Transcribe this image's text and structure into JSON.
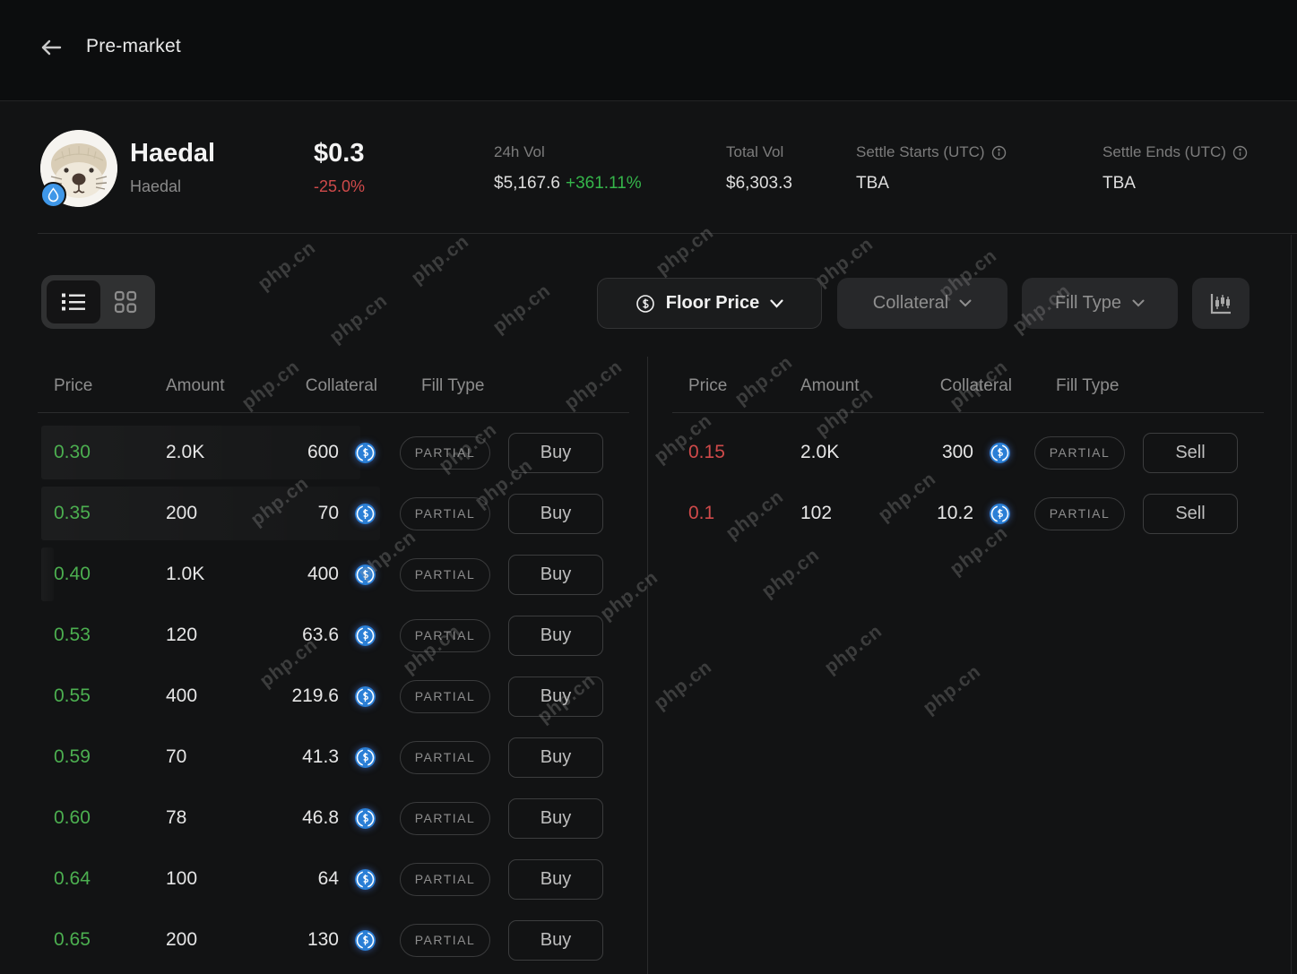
{
  "header": {
    "back": "back",
    "title": "Pre-market"
  },
  "token": {
    "name": "Haedal",
    "subtitle": "Haedal",
    "price": "$0.3",
    "change": "-25.0%",
    "chain_badge": "sui-icon",
    "stats": [
      {
        "label": "24h Vol",
        "value": "$5,167.6",
        "extra": "+361.11%",
        "info": false
      },
      {
        "label": "Total Vol",
        "value": "$6,303.3",
        "info": false
      },
      {
        "label": "Settle Starts (UTC)",
        "value": "TBA",
        "info": true
      },
      {
        "label": "Settle Ends (UTC)",
        "value": "TBA",
        "info": true
      }
    ]
  },
  "filters": {
    "floor_price_label": "Floor Price",
    "collateral_label": "Collateral",
    "fill_type_label": "Fill Type"
  },
  "buy_table": {
    "headers": {
      "price": "Price",
      "amount": "Amount",
      "collateral": "Collateral",
      "fill_type": "Fill Type"
    },
    "rows": [
      {
        "price": "0.30",
        "amount": "2.0K",
        "collateral": "600",
        "fill": "PARTIAL",
        "action": "Buy",
        "depth": 356
      },
      {
        "price": "0.35",
        "amount": "200",
        "collateral": "70",
        "fill": "PARTIAL",
        "action": "Buy",
        "depth": 378
      },
      {
        "price": "0.40",
        "amount": "1.0K",
        "collateral": "400",
        "fill": "PARTIAL",
        "action": "Buy",
        "depth": 14
      },
      {
        "price": "0.53",
        "amount": "120",
        "collateral": "63.6",
        "fill": "PARTIAL",
        "action": "Buy",
        "depth": 0
      },
      {
        "price": "0.55",
        "amount": "400",
        "collateral": "219.6",
        "fill": "PARTIAL",
        "action": "Buy",
        "depth": 0
      },
      {
        "price": "0.59",
        "amount": "70",
        "collateral": "41.3",
        "fill": "PARTIAL",
        "action": "Buy",
        "depth": 0
      },
      {
        "price": "0.60",
        "amount": "78",
        "collateral": "46.8",
        "fill": "PARTIAL",
        "action": "Buy",
        "depth": 0
      },
      {
        "price": "0.64",
        "amount": "100",
        "collateral": "64",
        "fill": "PARTIAL",
        "action": "Buy",
        "depth": 0
      },
      {
        "price": "0.65",
        "amount": "200",
        "collateral": "130",
        "fill": "PARTIAL",
        "action": "Buy",
        "depth": 0
      }
    ]
  },
  "sell_table": {
    "headers": {
      "price": "Price",
      "amount": "Amount",
      "collateral": "Collateral",
      "fill_type": "Fill Type"
    },
    "rows": [
      {
        "price": "0.15",
        "amount": "2.0K",
        "collateral": "300",
        "fill": "PARTIAL",
        "action": "Sell",
        "depth": 0
      },
      {
        "price": "0.1",
        "amount": "102",
        "collateral": "10.2",
        "fill": "PARTIAL",
        "action": "Sell",
        "depth": 0
      }
    ]
  },
  "watermark": {
    "text": "php.cn"
  },
  "colors": {
    "price_green": "#4caf50",
    "price_red": "#cf4a4a",
    "change_green": "#35b54a",
    "coin_blue": "#2b7fd6"
  }
}
